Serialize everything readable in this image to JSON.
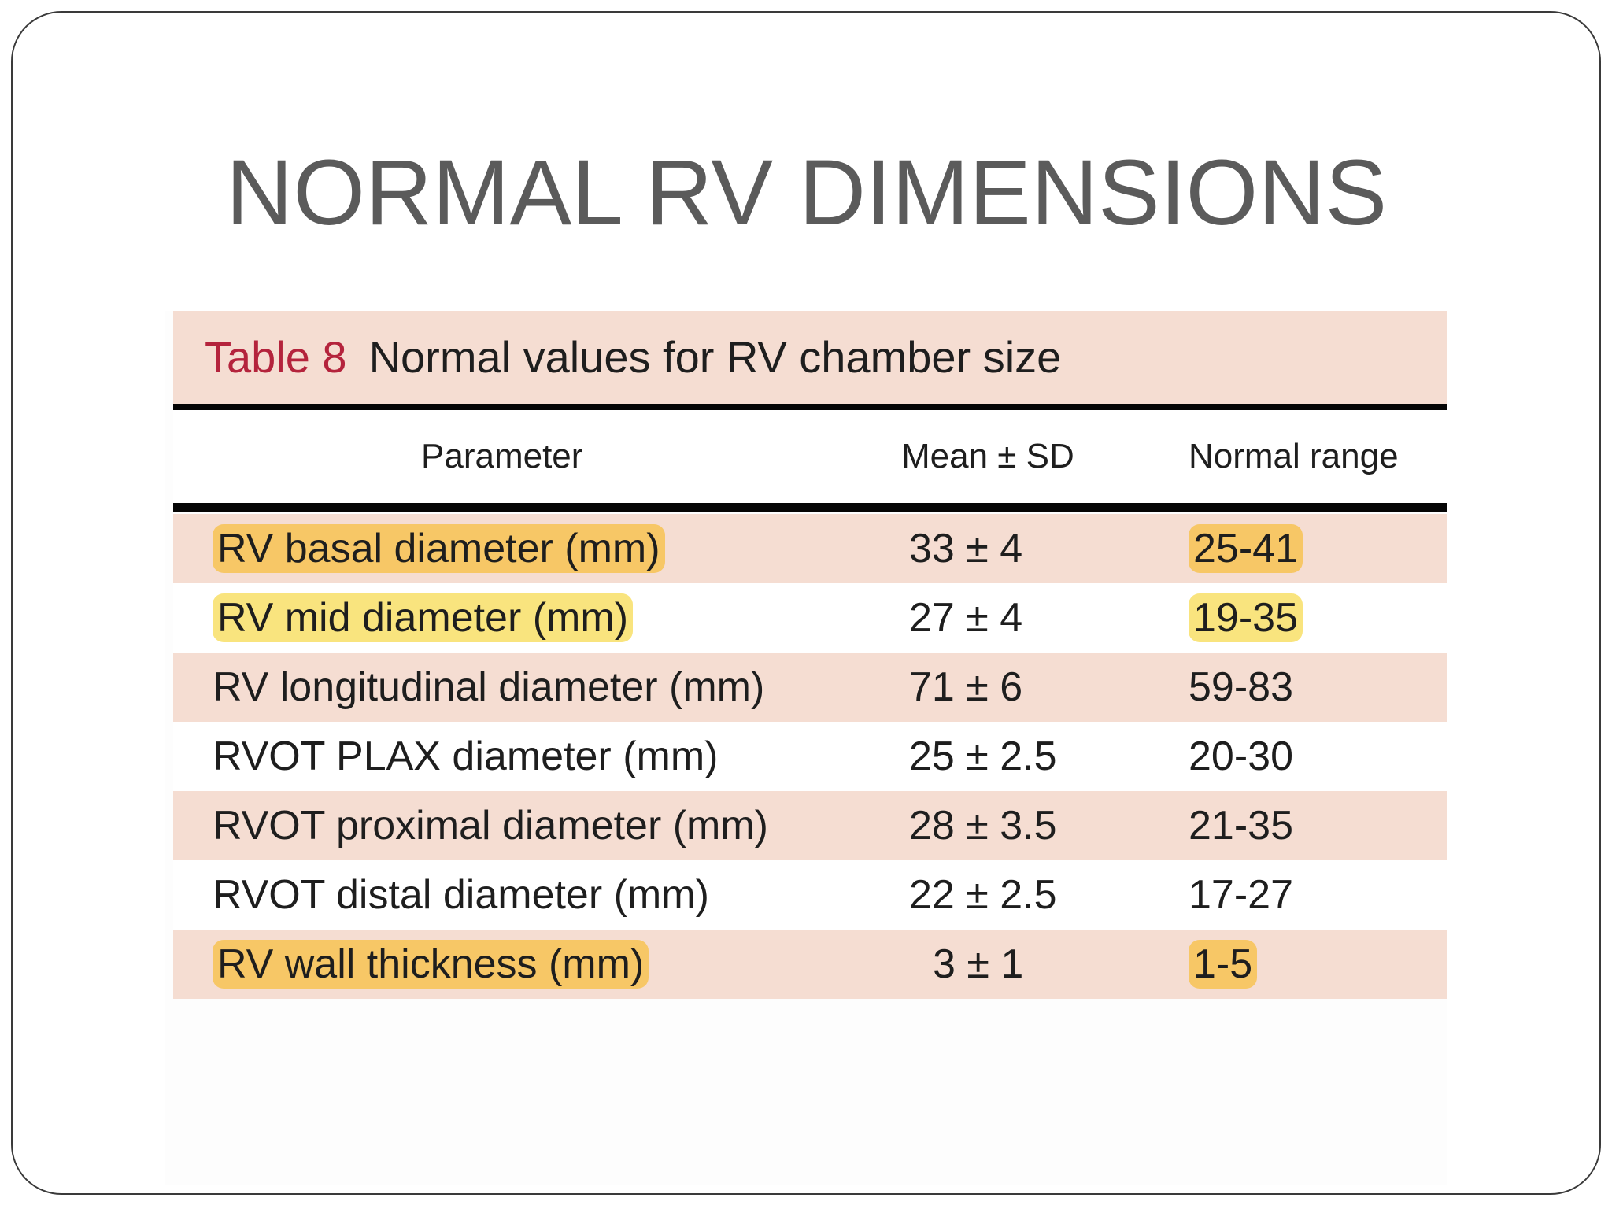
{
  "slide": {
    "title": "NORMAL RV DIMENSIONS"
  },
  "table": {
    "caption_number": "Table 8",
    "caption_text": "Normal values for RV chamber size",
    "headers": {
      "parameter": "Parameter",
      "mean_sd": "Mean ± SD",
      "normal_range": "Normal range"
    },
    "rows": [
      {
        "parameter": "RV basal diameter (mm)",
        "mean_sd": "33 ± 4",
        "range": "25-41",
        "highlight": "orange"
      },
      {
        "parameter": "RV mid diameter (mm)",
        "mean_sd": "27 ± 4",
        "range": "19-35",
        "highlight": "yellow"
      },
      {
        "parameter": "RV longitudinal diameter (mm)",
        "mean_sd": "71 ± 6",
        "range": "59-83",
        "highlight": "none"
      },
      {
        "parameter": "RVOT PLAX diameter (mm)",
        "mean_sd": "25 ± 2.5",
        "range": "20-30",
        "highlight": "none"
      },
      {
        "parameter": "RVOT proximal diameter (mm)",
        "mean_sd": "28 ± 3.5",
        "range": "21-35",
        "highlight": "none"
      },
      {
        "parameter": "RVOT distal diameter (mm)",
        "mean_sd": "22 ± 2.5",
        "range": "17-27",
        "highlight": "none"
      },
      {
        "parameter": "RV wall thickness (mm)",
        "mean_sd": "3 ± 1",
        "range": "1-5",
        "highlight": "orange"
      }
    ]
  },
  "colors": {
    "title_text": "#5b5b5b",
    "row_shade": "#f5ddd2",
    "caption_number": "#b4233c",
    "highlight_orange": "#f7c766",
    "highlight_yellow": "#f9e47e"
  }
}
